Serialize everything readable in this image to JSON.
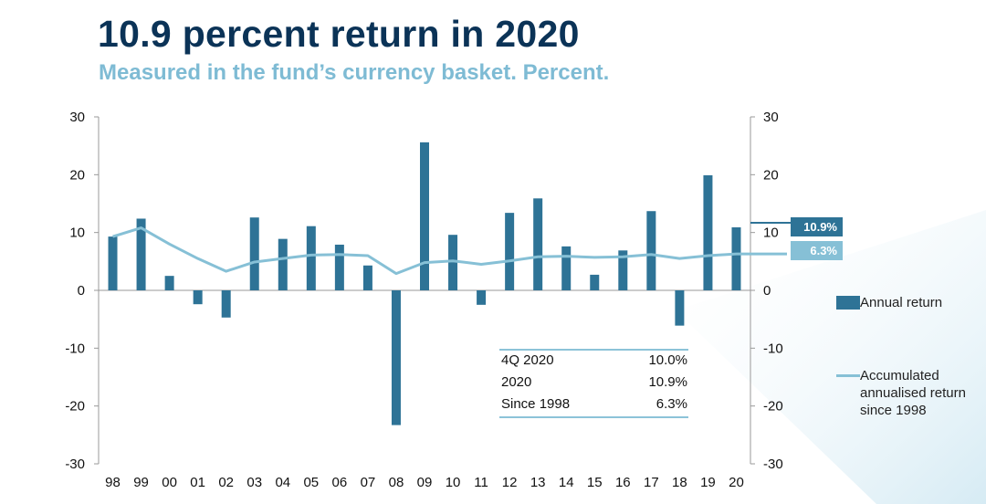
{
  "header": {
    "title": "10.9 percent return in 2020",
    "subtitle": "Measured in the fund’s currency basket. Percent."
  },
  "colors": {
    "bar": "#2e7396",
    "line": "#86c0d6",
    "title": "#0b3357",
    "subtitle": "#7ebbd4"
  },
  "stats_table": [
    {
      "label": "4Q 2020",
      "value": "10.0%"
    },
    {
      "label": "2020",
      "value": "10.9%"
    },
    {
      "label": "Since 1998",
      "value": "6.3%"
    }
  ],
  "legend": {
    "annual": "Annual return",
    "accumulated": "Accumulated annualised return since 1998"
  },
  "callouts": {
    "annual": "10.9%",
    "accumulated": "6.3%"
  },
  "chart_data": {
    "type": "bar",
    "title": "10.9 percent return in 2020",
    "subtitle": "Measured in the fund’s currency basket. Percent.",
    "categories": [
      "98",
      "99",
      "00",
      "01",
      "02",
      "03",
      "04",
      "05",
      "06",
      "07",
      "08",
      "09",
      "10",
      "11",
      "12",
      "13",
      "14",
      "15",
      "16",
      "17",
      "18",
      "19",
      "20"
    ],
    "series": [
      {
        "name": "Annual return",
        "type": "bar",
        "values": [
          9.3,
          12.4,
          2.5,
          -2.4,
          -4.7,
          12.6,
          8.9,
          11.1,
          7.9,
          4.3,
          -23.3,
          25.6,
          9.6,
          -2.5,
          13.4,
          15.9,
          7.6,
          2.7,
          6.9,
          13.7,
          -6.1,
          19.9,
          10.9
        ]
      },
      {
        "name": "Accumulated annualised return since 1998",
        "type": "line",
        "values": [
          9.3,
          10.8,
          8.0,
          5.5,
          3.3,
          4.9,
          5.5,
          6.1,
          6.2,
          6.0,
          2.9,
          4.8,
          5.1,
          4.5,
          5.1,
          5.8,
          5.9,
          5.7,
          5.8,
          6.2,
          5.5,
          6.0,
          6.3
        ]
      }
    ],
    "yticks": [
      30,
      20,
      10,
      0,
      -10,
      -20,
      -30
    ],
    "ylim": [
      -30,
      30
    ],
    "y2lim": [
      -30,
      30
    ],
    "grid": false,
    "legend_position": "right"
  }
}
